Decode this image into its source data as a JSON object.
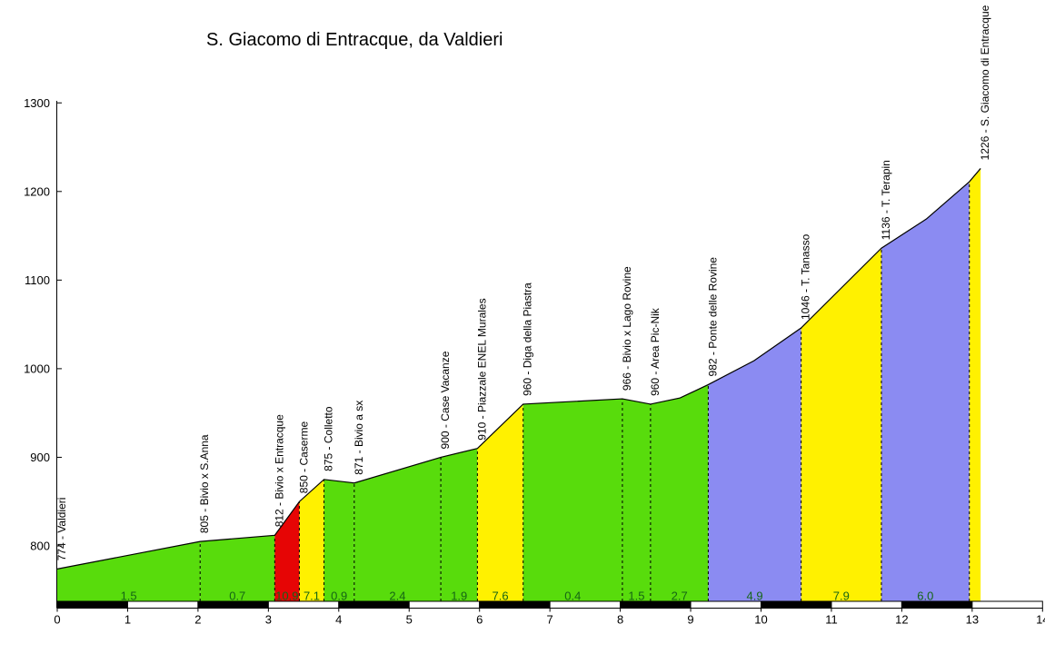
{
  "title": "S. Giacomo di Entracque, da Valdieri",
  "chart_data": {
    "type": "area",
    "title": "S. Giacomo di Entracque, da Valdieri",
    "xlabel": "",
    "ylabel": "",
    "x_unit": "km",
    "y_unit": "m",
    "x_axis": {
      "range_km": [
        0,
        14
      ],
      "ticks": [
        0,
        1,
        2,
        3,
        4,
        5,
        6,
        7,
        8,
        9,
        10,
        11,
        12,
        13,
        14
      ]
    },
    "y_axis": {
      "ticks": [
        800,
        900,
        1000,
        1100,
        1200,
        1300
      ]
    },
    "profile_points": [
      [
        0,
        774
      ],
      [
        2.03,
        805
      ],
      [
        3.09,
        812
      ],
      [
        3.44,
        850
      ],
      [
        3.79,
        875
      ],
      [
        4.22,
        871
      ],
      [
        5.45,
        900
      ],
      [
        5.97,
        910
      ],
      [
        6.62,
        960
      ],
      [
        8.03,
        966
      ],
      [
        8.43,
        960
      ],
      [
        8.85,
        967
      ],
      [
        9.25,
        982
      ],
      [
        9.9,
        1009
      ],
      [
        10.57,
        1046
      ],
      [
        11.71,
        1136
      ],
      [
        12.35,
        1169
      ],
      [
        12.96,
        1211
      ],
      [
        13.12,
        1226
      ]
    ],
    "waypoints": [
      {
        "km": 0,
        "elev": 774,
        "label": "774 - Valdieri"
      },
      {
        "km": 2.03,
        "elev": 805,
        "label": "805 - Bivio x S.Anna"
      },
      {
        "km": 3.09,
        "elev": 812,
        "label": "812 - Bivio x Entracque"
      },
      {
        "km": 3.44,
        "elev": 850,
        "label": "850 - Caserme"
      },
      {
        "km": 3.79,
        "elev": 875,
        "label": "875 - Colletto"
      },
      {
        "km": 4.22,
        "elev": 871,
        "label": "871 - Bivio a sx"
      },
      {
        "km": 5.45,
        "elev": 900,
        "label": "900 - Case Vacanze"
      },
      {
        "km": 5.97,
        "elev": 910,
        "label": "910 - Piazzale ENEL Murales"
      },
      {
        "km": 6.62,
        "elev": 960,
        "label": "960 - Diga della Piastra"
      },
      {
        "km": 8.03,
        "elev": 966,
        "label": "966 - Bivio x Lago Rovine"
      },
      {
        "km": 8.43,
        "elev": 960,
        "label": "960 - Area Pic-Nik"
      },
      {
        "km": 9.25,
        "elev": 982,
        "label": "982 - Ponte delle Rovine"
      },
      {
        "km": 10.57,
        "elev": 1046,
        "label": "1046 - T. Tanasso"
      },
      {
        "km": 11.71,
        "elev": 1136,
        "label": "1136 - T. Terapin"
      },
      {
        "km": 13.12,
        "elev": 1226,
        "label": "1226 - S. Giacomo di Entracque"
      }
    ],
    "segments": [
      {
        "from_km": 0,
        "to_km": 2.03,
        "gradient_pct": "1.5",
        "color": "green"
      },
      {
        "from_km": 2.03,
        "to_km": 3.09,
        "gradient_pct": "0.7",
        "color": "green"
      },
      {
        "from_km": 3.09,
        "to_km": 3.44,
        "gradient_pct": "10.9",
        "color": "red"
      },
      {
        "from_km": 3.44,
        "to_km": 3.79,
        "gradient_pct": "7.1",
        "color": "yellow"
      },
      {
        "from_km": 3.79,
        "to_km": 4.22,
        "gradient_pct": "0.9",
        "color": "green"
      },
      {
        "from_km": 4.22,
        "to_km": 5.45,
        "gradient_pct": "2.4",
        "color": "green"
      },
      {
        "from_km": 5.45,
        "to_km": 5.97,
        "gradient_pct": "1.9",
        "color": "green"
      },
      {
        "from_km": 5.97,
        "to_km": 6.62,
        "gradient_pct": "7.6",
        "color": "yellow"
      },
      {
        "from_km": 6.62,
        "to_km": 8.03,
        "gradient_pct": "0.4",
        "color": "green"
      },
      {
        "from_km": 8.03,
        "to_km": 8.43,
        "gradient_pct": "1.5",
        "color": "green"
      },
      {
        "from_km": 8.43,
        "to_km": 9.25,
        "gradient_pct": "2.7",
        "color": "green"
      },
      {
        "from_km": 9.25,
        "to_km": 10.57,
        "gradient_pct": "4.9",
        "color": "blue"
      },
      {
        "from_km": 10.57,
        "to_km": 11.71,
        "gradient_pct": "7.9",
        "color": "yellow"
      },
      {
        "from_km": 11.71,
        "to_km": 12.96,
        "gradient_pct": "6.0",
        "color": "blue"
      },
      {
        "from_km": 12.96,
        "to_km": 13.12,
        "gradient_pct": "",
        "color": "yellow"
      }
    ],
    "colors": {
      "green": "#58DC0C",
      "yellow": "#FFF100",
      "red": "#E60505",
      "blue": "#8B8BF2",
      "outline": "#000000",
      "gradient_text": "#156515",
      "axis_text": "#000000",
      "bar_black": "#000000",
      "bar_white": "#FFFFFF",
      "background": "#FFFFFF"
    },
    "km_bar": {
      "start": 0,
      "end": 14,
      "pattern": "alternating black/white per km, black first"
    }
  }
}
